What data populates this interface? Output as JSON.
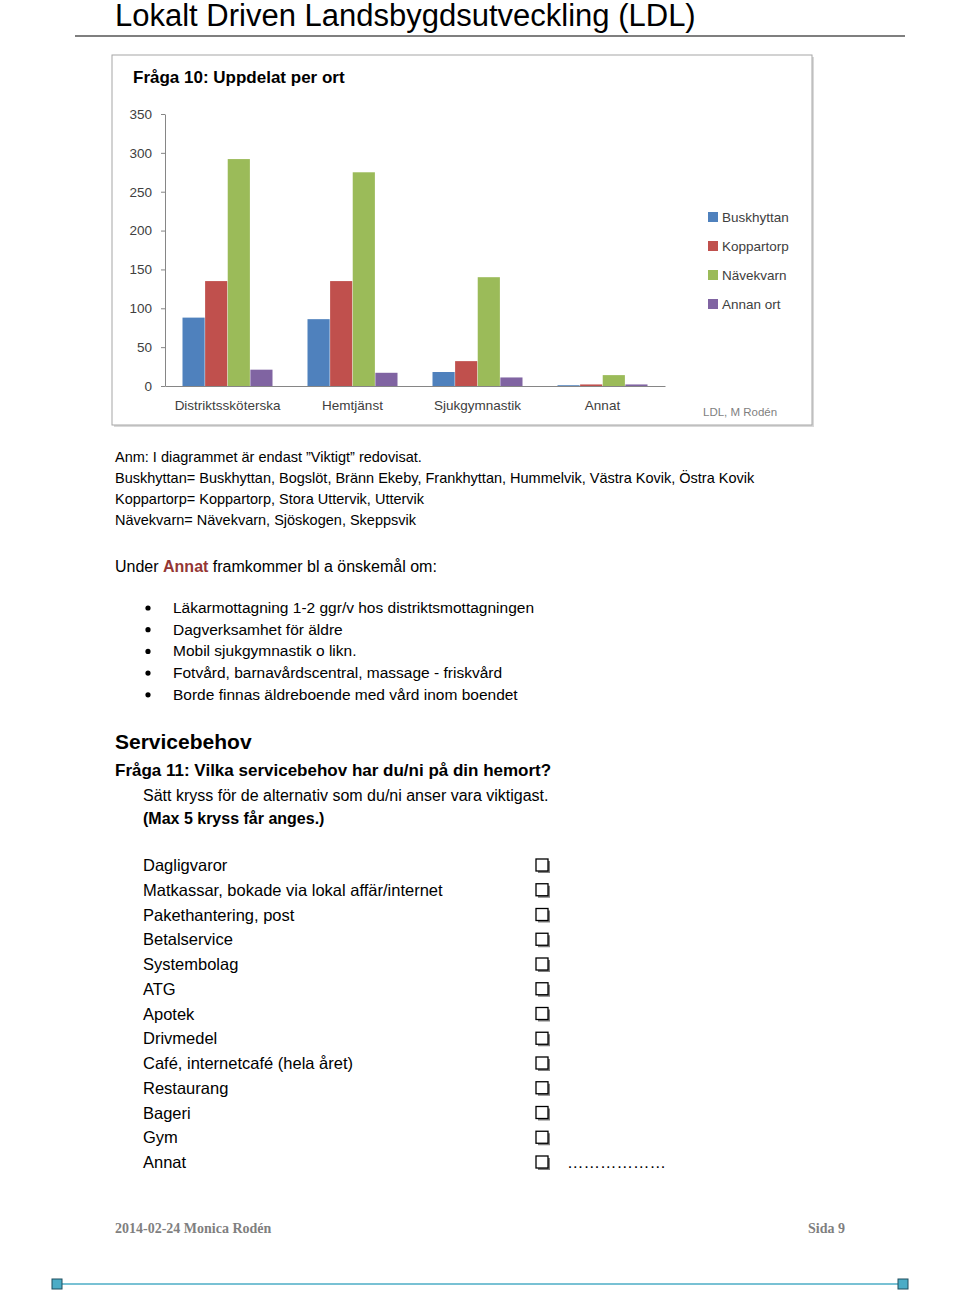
{
  "header": {
    "title": "Lokalt Driven Landsbygdsutveckling (LDL)"
  },
  "chart_data": {
    "type": "bar",
    "title": "Fråga 10: Uppdelat per ort",
    "categories": [
      "Distriktssköterska",
      "Hemtjänst",
      "Sjukgymnastik",
      "Annat"
    ],
    "series": [
      {
        "name": "Buskhyttan",
        "color": "#4f81bd",
        "values": [
          88,
          86,
          18,
          1
        ]
      },
      {
        "name": "Koppartorp",
        "color": "#c0504d",
        "values": [
          135,
          135,
          32,
          2
        ]
      },
      {
        "name": "Nävekvarn",
        "color": "#9bbb59",
        "values": [
          292,
          275,
          140,
          14
        ]
      },
      {
        "name": "Annan ort",
        "color": "#8064a2",
        "values": [
          21,
          17,
          11,
          2
        ]
      }
    ],
    "ylim": [
      0,
      350
    ],
    "yticks": [
      0,
      50,
      100,
      150,
      200,
      250,
      300,
      350
    ],
    "grid": false,
    "legend": "right",
    "annotations": [
      "LDL, M Rodén"
    ]
  },
  "notes": [
    "Anm: I diagrammet är endast ”Viktigt” redovisat.",
    "Buskhyttan= Buskhyttan, Bogslöt, Bränn Ekeby, Frankhyttan, Hummelvik, Västra Kovik, Östra Kovik",
    "Koppartorp= Koppartorp, Stora Uttervik, Uttervik",
    "Nävekvarn= Nävekvarn, Sjöskogen, Skeppsvik"
  ],
  "annat_intro": {
    "before": "Under ",
    "bold": "Annat",
    "after": " framkommer bl a önskemål om:"
  },
  "annat_items": [
    "Läkarmottagning 1-2 ggr/v hos distriktsmottagningen",
    "Dagverksamhet för äldre",
    "Mobil sjukgymnastik o likn.",
    "Fotvård, barnavårdscentral, massage - friskvård",
    "Borde finnas äldreboende med vård inom boendet"
  ],
  "section": {
    "heading": "Servicebehov",
    "question": "Fråga 11: Vilka servicebehov har du/ni på din hemort?",
    "instruction": "Sätt kryss för de alternativ som du/ni anser vara viktigast.",
    "limit": "(Max 5 kryss får anges.)"
  },
  "options": [
    "Dagligvaror",
    "Matkassar, bokade via lokal affär/internet",
    "Pakethantering, post",
    "Betalservice",
    "Systembolag",
    "ATG",
    "Apotek",
    "Drivmedel",
    "Café, internetcafé (hela året)",
    "Restaurang",
    "Bageri",
    "Gym",
    "Annat"
  ],
  "other_blank": "………………",
  "footer": {
    "left": "2014-02-24 Monica Rodén",
    "right": "Sida 9"
  }
}
